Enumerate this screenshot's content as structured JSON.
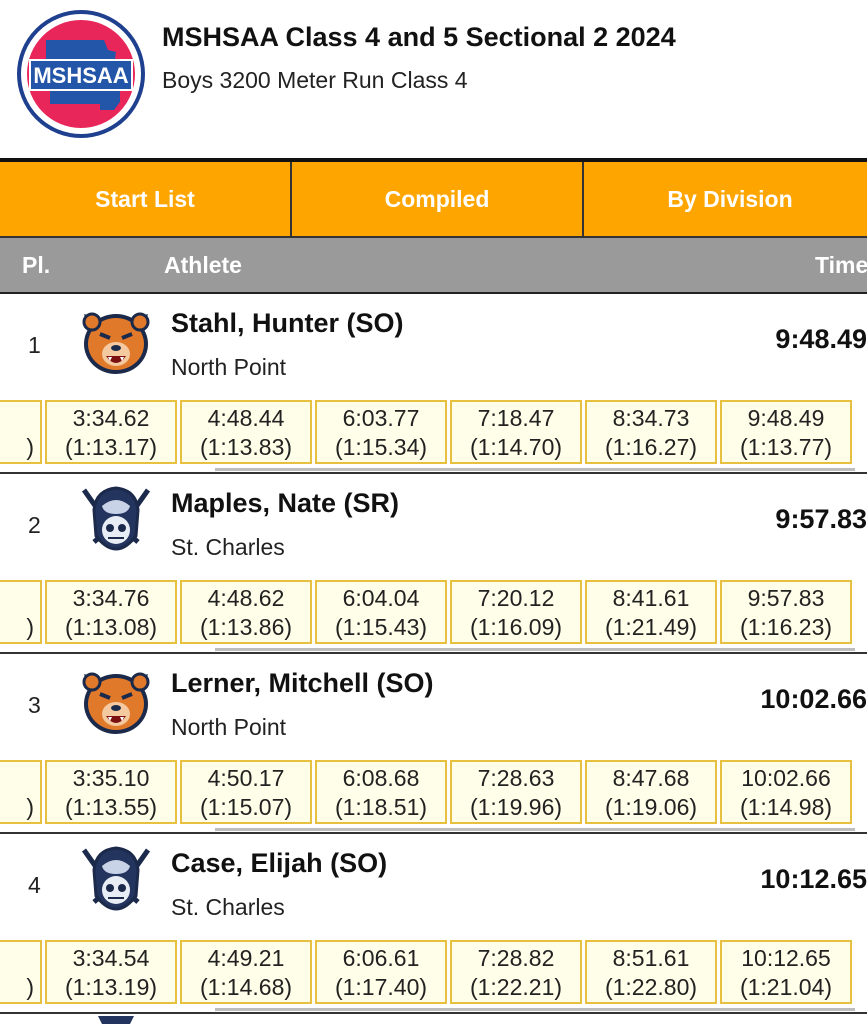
{
  "meet": {
    "logo_text": "MSHSAA",
    "title": "MSHSAA Class 4 and 5 Sectional 2 2024",
    "event": "Boys 3200 Meter Run Class 4"
  },
  "tabs": [
    {
      "label": "Start List"
    },
    {
      "label": "Compiled"
    },
    {
      "label": "By Division"
    }
  ],
  "columns": {
    "place": "Pl.",
    "athlete": "Athlete",
    "time": "Time"
  },
  "results": [
    {
      "place": "1",
      "name": "Stahl, Hunter (SO)",
      "team": "North Point",
      "mascot": "bear-mascot-icon",
      "time": "9:48.49",
      "splits": [
        {
          "cum": "3:34.62",
          "lap": "(1:13.17)"
        },
        {
          "cum": "4:48.44",
          "lap": "(1:13.83)"
        },
        {
          "cum": "6:03.77",
          "lap": "(1:15.34)"
        },
        {
          "cum": "7:18.47",
          "lap": "(1:14.70)"
        },
        {
          "cum": "8:34.73",
          "lap": "(1:16.27)"
        },
        {
          "cum": "9:48.49",
          "lap": "(1:13.77)"
        }
      ]
    },
    {
      "place": "2",
      "name": "Maples, Nate (SR)",
      "team": "St. Charles",
      "mascot": "pirate-mascot-icon",
      "time": "9:57.83",
      "splits": [
        {
          "cum": "3:34.76",
          "lap": "(1:13.08)"
        },
        {
          "cum": "4:48.62",
          "lap": "(1:13.86)"
        },
        {
          "cum": "6:04.04",
          "lap": "(1:15.43)"
        },
        {
          "cum": "7:20.12",
          "lap": "(1:16.09)"
        },
        {
          "cum": "8:41.61",
          "lap": "(1:21.49)"
        },
        {
          "cum": "9:57.83",
          "lap": "(1:16.23)"
        }
      ]
    },
    {
      "place": "3",
      "name": "Lerner, Mitchell (SO)",
      "team": "North Point",
      "mascot": "bear-mascot-icon",
      "time": "10:02.66",
      "splits": [
        {
          "cum": "3:35.10",
          "lap": "(1:13.55)"
        },
        {
          "cum": "4:50.17",
          "lap": "(1:15.07)"
        },
        {
          "cum": "6:08.68",
          "lap": "(1:18.51)"
        },
        {
          "cum": "7:28.63",
          "lap": "(1:19.96)"
        },
        {
          "cum": "8:47.68",
          "lap": "(1:19.06)"
        },
        {
          "cum": "10:02.66",
          "lap": "(1:14.98)"
        }
      ]
    },
    {
      "place": "4",
      "name": "Case, Elijah (SO)",
      "team": "St. Charles",
      "mascot": "pirate-mascot-icon",
      "time": "10:12.65",
      "splits": [
        {
          "cum": "3:34.54",
          "lap": "(1:13.19)"
        },
        {
          "cum": "4:49.21",
          "lap": "(1:14.68)"
        },
        {
          "cum": "6:06.61",
          "lap": "(1:17.40)"
        },
        {
          "cum": "7:28.82",
          "lap": "(1:22.21)"
        },
        {
          "cum": "8:51.61",
          "lap": "(1:22.80)"
        },
        {
          "cum": "10:12.65",
          "lap": "(1:21.04)"
        }
      ]
    }
  ],
  "colors": {
    "tab_bg": "#FFA500",
    "header_bg": "#9a9a9a",
    "split_bg": "#FFFEE8",
    "split_border": "#E8C040"
  }
}
